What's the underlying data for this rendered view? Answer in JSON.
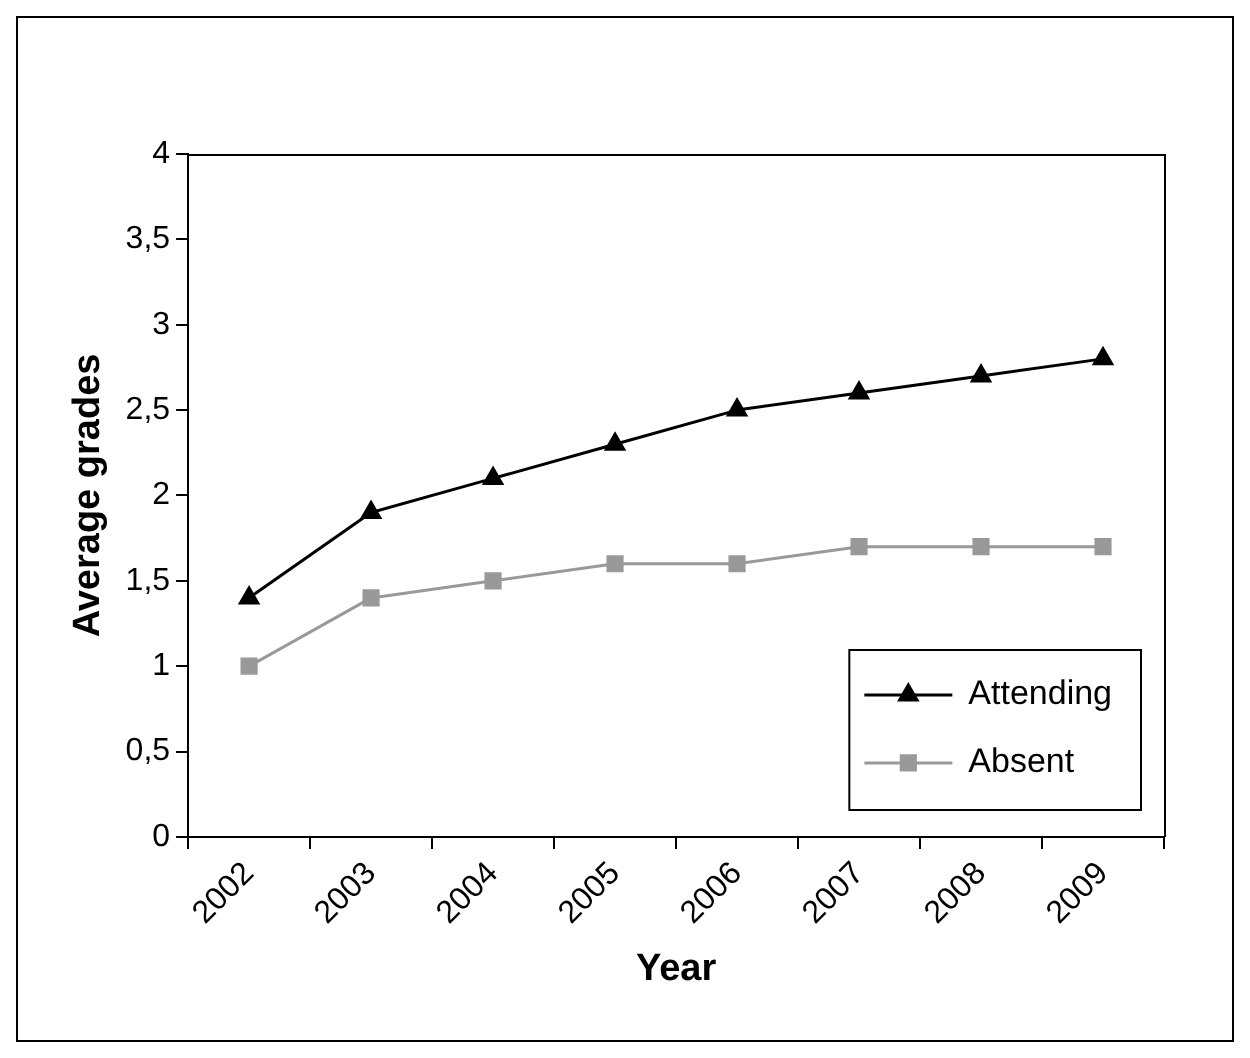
{
  "chart_data": {
    "type": "line",
    "xlabel": "Year",
    "ylabel": "Average grades",
    "categories": [
      "2002",
      "2003",
      "2004",
      "2005",
      "2006",
      "2007",
      "2008",
      "2009"
    ],
    "series": [
      {
        "name": "Attending",
        "color": "#000000",
        "marker": "triangle",
        "values": [
          1.4,
          1.9,
          2.1,
          2.3,
          2.5,
          2.6,
          2.7,
          2.8
        ]
      },
      {
        "name": "Absent",
        "color": "#999999",
        "marker": "square",
        "values": [
          1.0,
          1.4,
          1.5,
          1.6,
          1.6,
          1.7,
          1.7,
          1.7
        ]
      }
    ],
    "ylim": [
      0,
      4
    ],
    "yticks": [
      0,
      {
        "value": 0.5,
        "label": "0,5"
      },
      1,
      {
        "value": 1.5,
        "label": "1,5"
      },
      2,
      {
        "value": 2.5,
        "label": "2,5"
      },
      3,
      {
        "value": 3.5,
        "label": "3,5"
      },
      4
    ],
    "grid": false,
    "legend": "bottom right",
    "line_style": "solid"
  }
}
